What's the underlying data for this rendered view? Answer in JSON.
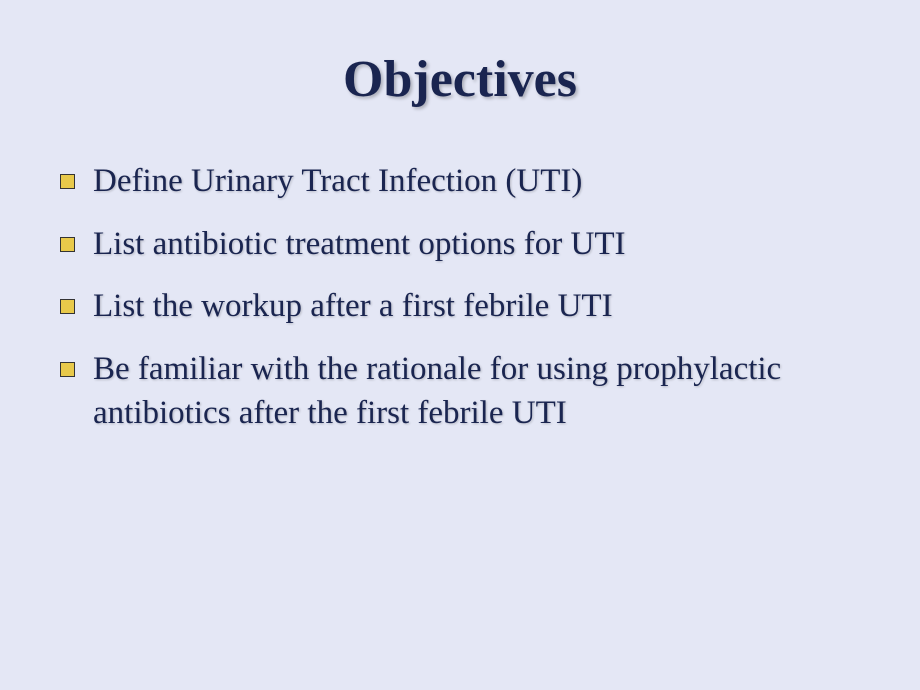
{
  "slide": {
    "title": "Objectives",
    "background_color": "#e4e7f5",
    "title_color": "#1a2550",
    "text_color": "#1a2550",
    "bullet_color": "#e8c94a",
    "bullets": [
      "Define Urinary Tract Infection (UTI)",
      "List antibiotic treatment options for UTI",
      "List the workup after a first febrile UTI",
      "Be familiar with the rationale for using prophylactic antibiotics after the first febrile UTI"
    ]
  }
}
